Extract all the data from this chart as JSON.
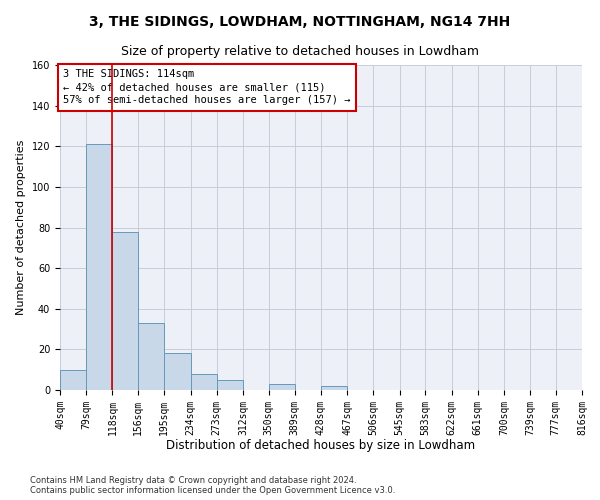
{
  "title": "3, THE SIDINGS, LOWDHAM, NOTTINGHAM, NG14 7HH",
  "subtitle": "Size of property relative to detached houses in Lowdham",
  "xlabel": "Distribution of detached houses by size in Lowdham",
  "ylabel": "Number of detached properties",
  "bar_color": "#c8d8e8",
  "bar_edge_color": "#6699bb",
  "grid_color": "#c8ccd8",
  "background_color": "#eef0f8",
  "annotation_text": "3 THE SIDINGS: 114sqm\n← 42% of detached houses are smaller (115)\n57% of semi-detached houses are larger (157) →",
  "vline_x": 118,
  "vline_color": "#cc0000",
  "bin_edges": [
    40,
    79,
    118,
    156,
    195,
    234,
    273,
    312,
    350,
    389,
    428,
    467,
    506,
    545,
    583,
    622,
    661,
    700,
    739,
    777,
    816
  ],
  "bin_counts": [
    10,
    121,
    78,
    33,
    18,
    8,
    5,
    0,
    3,
    0,
    2,
    0,
    0,
    0,
    0,
    0,
    0,
    0,
    0,
    0
  ],
  "xlim": [
    40,
    816
  ],
  "ylim": [
    0,
    160
  ],
  "yticks": [
    0,
    20,
    40,
    60,
    80,
    100,
    120,
    140,
    160
  ],
  "tick_labels": [
    "40sqm",
    "79sqm",
    "118sqm",
    "156sqm",
    "195sqm",
    "234sqm",
    "273sqm",
    "312sqm",
    "350sqm",
    "389sqm",
    "428sqm",
    "467sqm",
    "506sqm",
    "545sqm",
    "583sqm",
    "622sqm",
    "661sqm",
    "700sqm",
    "739sqm",
    "777sqm",
    "816sqm"
  ],
  "footer": "Contains HM Land Registry data © Crown copyright and database right 2024.\nContains public sector information licensed under the Open Government Licence v3.0.",
  "title_fontsize": 10,
  "subtitle_fontsize": 9,
  "ylabel_fontsize": 8,
  "xlabel_fontsize": 8.5,
  "tick_fontsize": 7,
  "annotation_fontsize": 7.5,
  "footer_fontsize": 6
}
